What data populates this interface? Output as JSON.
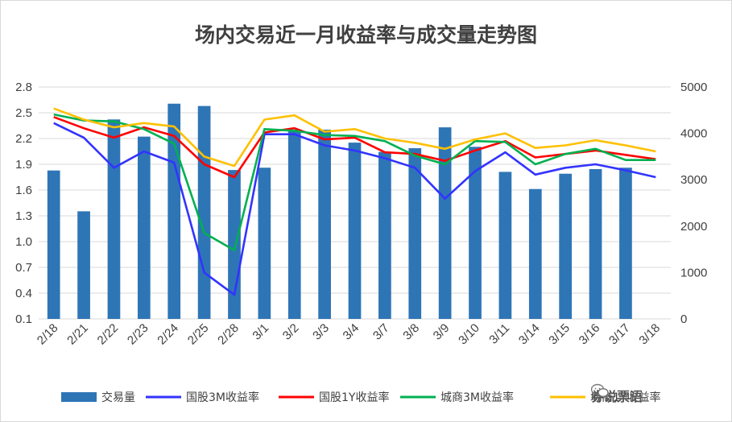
{
  "chart_data": {
    "type": "bar",
    "title": "场内交易近一月收益率与成交量走势图",
    "categories": [
      "2/18",
      "2/21",
      "2/22",
      "2/23",
      "2/24",
      "2/25",
      "2/28",
      "3/1",
      "3/2",
      "3/3",
      "3/4",
      "3/7",
      "3/8",
      "3/9",
      "3/10",
      "3/11",
      "3/14",
      "3/15",
      "3/16",
      "3/17",
      "3/18"
    ],
    "left_axis": {
      "ticks": [
        "0.1",
        "0.4",
        "0.7",
        "1.0",
        "1.3",
        "1.6",
        "1.9",
        "2.2",
        "2.5",
        "2.8"
      ],
      "ylim": [
        0.1,
        2.8
      ]
    },
    "right_axis": {
      "ticks": [
        "0",
        "1000",
        "2000",
        "3000",
        "4000",
        "5000"
      ],
      "ylim": [
        0,
        5000
      ]
    },
    "bars": {
      "name": "交易量",
      "color": "#2e75b6",
      "axis": "right",
      "values": [
        3200,
        2320,
        4300,
        3930,
        4640,
        4590,
        3210,
        3260,
        4080,
        4080,
        3800,
        3600,
        3680,
        4130,
        3710,
        3170,
        2800,
        3130,
        3230,
        3260,
        0
      ]
    },
    "series": [
      {
        "name": "国股3M收益率",
        "color": "#3333ff",
        "axis": "left",
        "values": [
          2.38,
          2.21,
          1.86,
          2.05,
          1.92,
          0.64,
          0.38,
          2.25,
          2.25,
          2.12,
          2.06,
          1.97,
          1.86,
          1.5,
          1.82,
          2.04,
          1.78,
          1.86,
          1.9,
          1.83,
          1.75
        ]
      },
      {
        "name": "国股1Y收益率",
        "color": "#ff0000",
        "axis": "left",
        "values": [
          2.45,
          2.32,
          2.21,
          2.33,
          2.23,
          1.9,
          1.75,
          2.27,
          2.32,
          2.19,
          2.21,
          2.04,
          2.02,
          1.94,
          2.06,
          2.17,
          1.98,
          2.02,
          2.06,
          2.01,
          1.96
        ]
      },
      {
        "name": "城商3M收益率",
        "color": "#00b050",
        "axis": "left",
        "values": [
          2.48,
          2.41,
          2.4,
          2.31,
          2.14,
          1.1,
          0.9,
          2.31,
          2.29,
          2.24,
          2.23,
          2.17,
          2.0,
          1.9,
          2.17,
          2.16,
          1.9,
          2.02,
          2.08,
          1.95,
          1.95
        ]
      },
      {
        "name": "城商1Y收益率",
        "color": "#ffc000",
        "axis": "left",
        "values": [
          2.55,
          2.42,
          2.33,
          2.38,
          2.34,
          1.99,
          1.88,
          2.42,
          2.47,
          2.28,
          2.31,
          2.2,
          2.15,
          2.08,
          2.19,
          2.26,
          2.09,
          2.12,
          2.18,
          2.12,
          2.05
        ]
      }
    ],
    "legend_position": "bottom"
  },
  "watermark": {
    "text": "券说票语"
  }
}
